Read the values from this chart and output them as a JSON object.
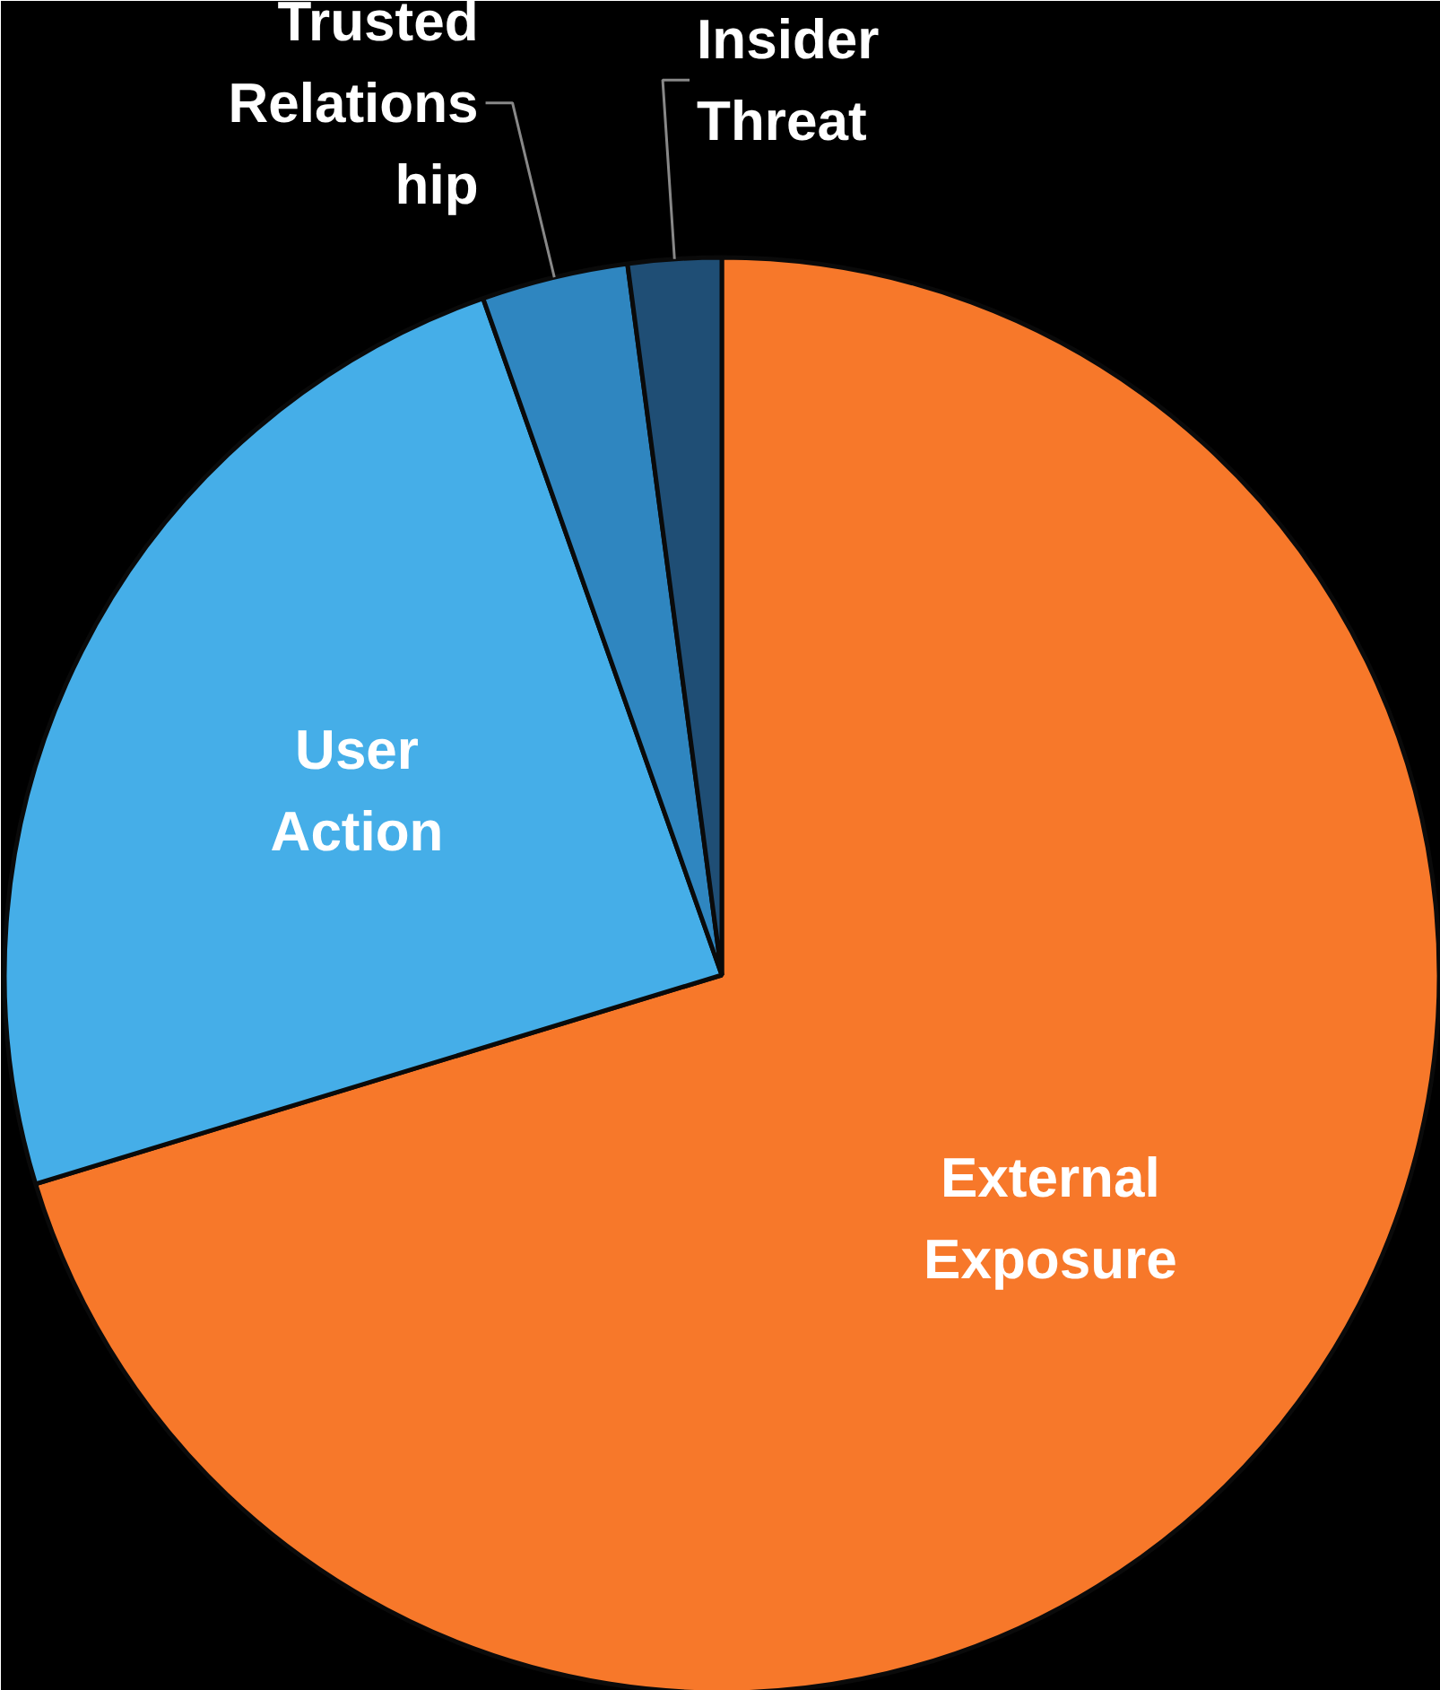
{
  "chart_data": {
    "type": "pie",
    "categories": [
      "External Exposure",
      "User Action",
      "Trusted Relationship",
      "Insider Threat"
    ],
    "values": [
      70.3,
      24.3,
      3.3,
      2.1
    ],
    "colors": [
      "#f7782a",
      "#45aee8",
      "#2f86c0",
      "#1f4e75"
    ]
  }
}
